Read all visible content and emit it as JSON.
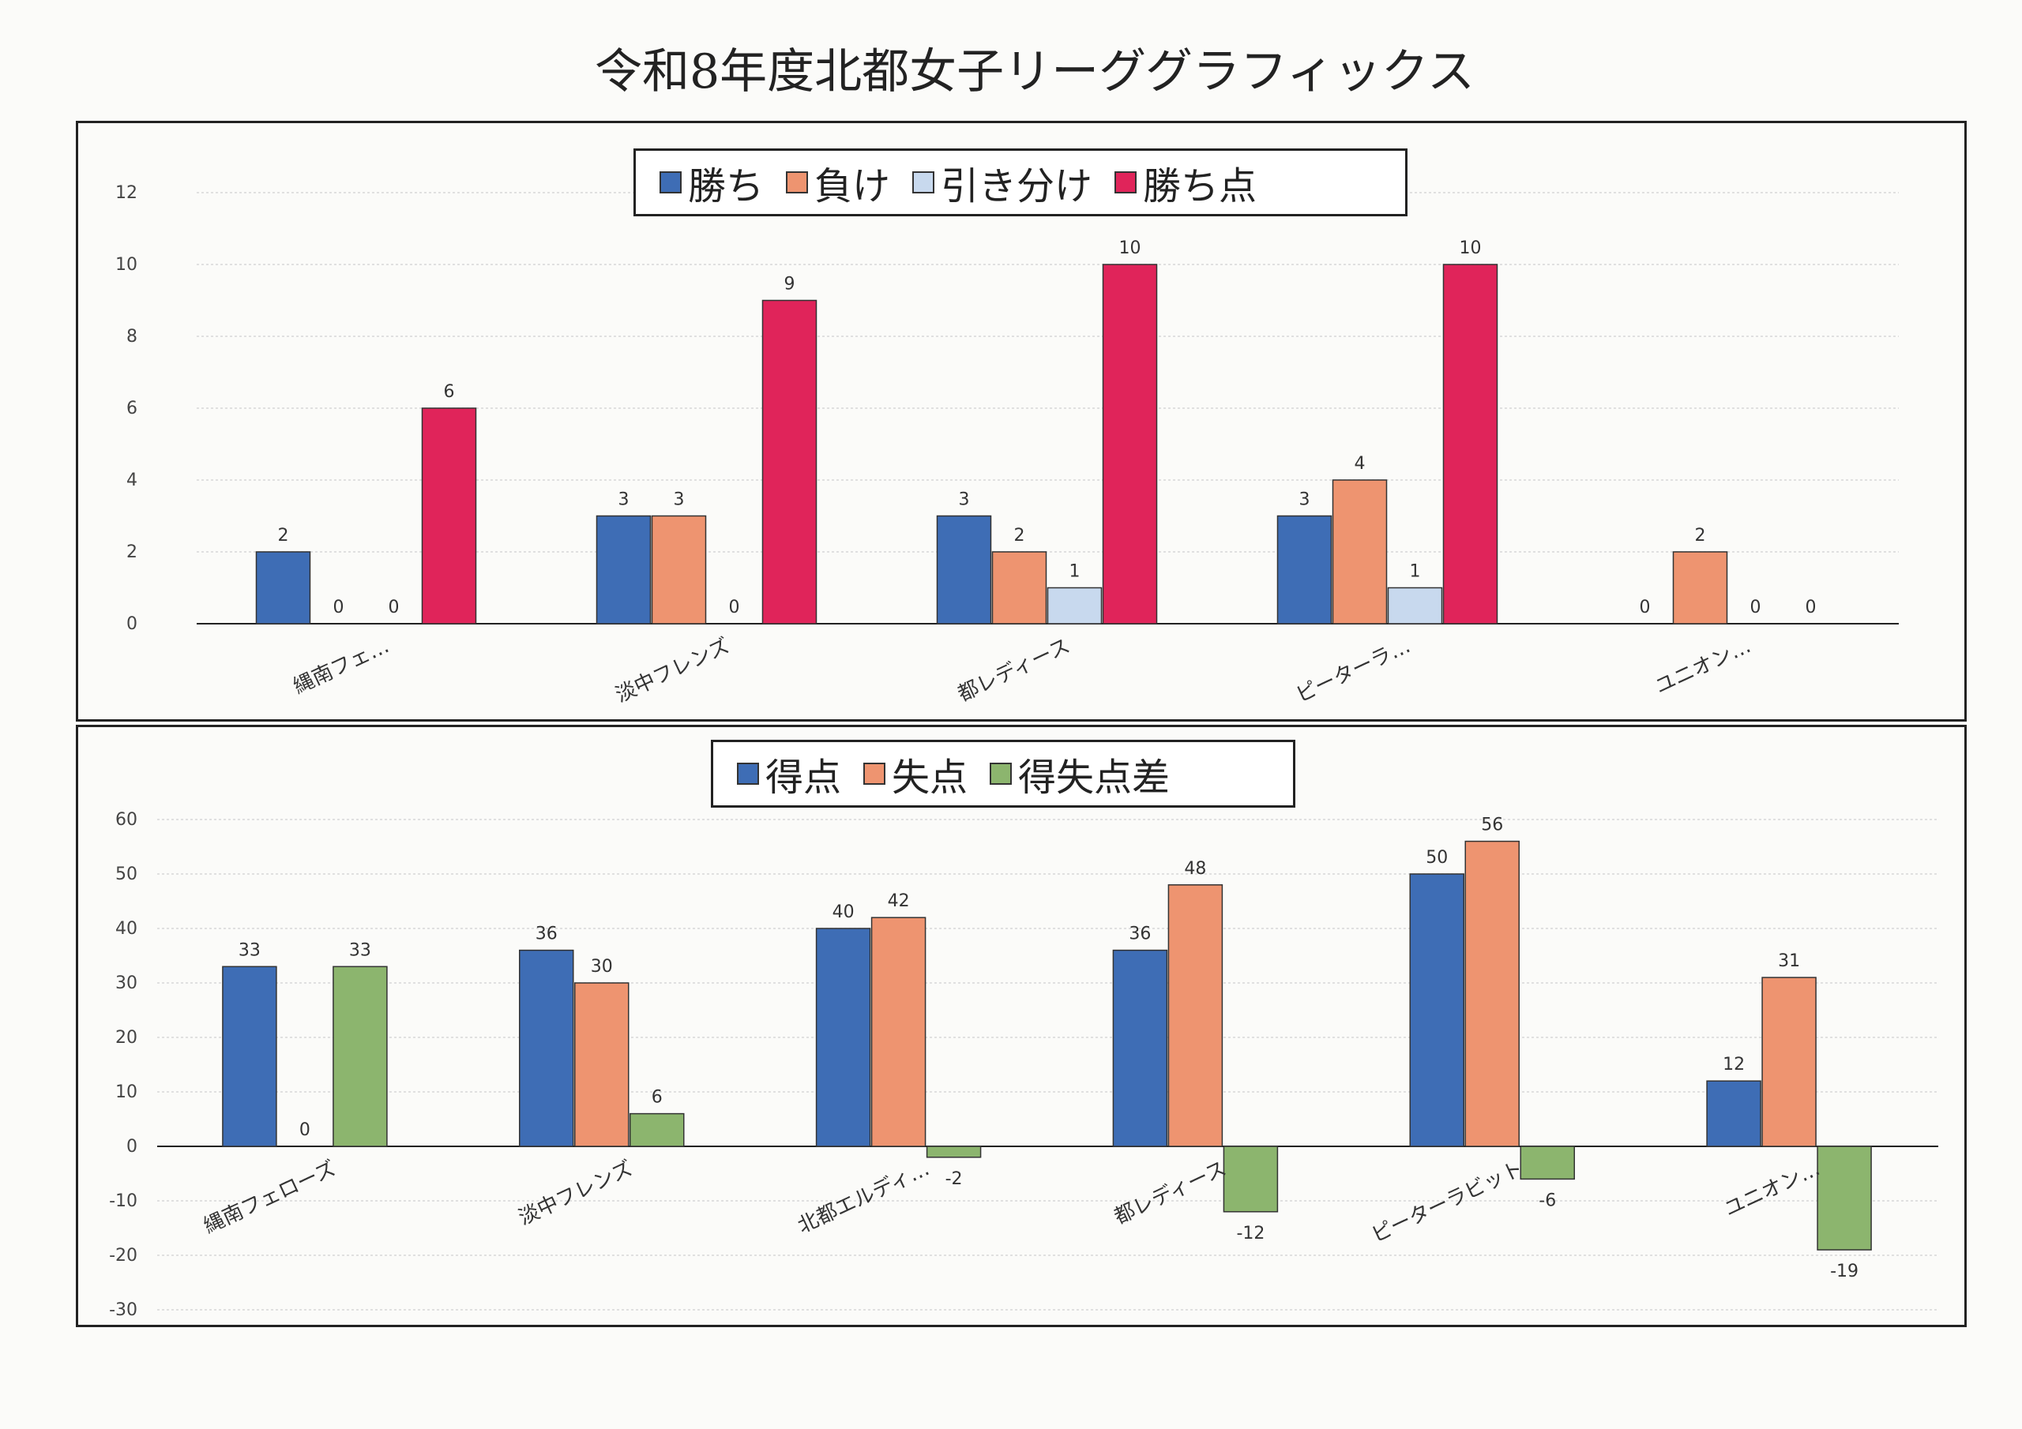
{
  "title": "令和8年度北都女子リーググラフィックス",
  "colors": {
    "win": "#3e6db5",
    "loss": "#ee9470",
    "draw": "#c8d9ee",
    "points": "#e0245a",
    "goals_for": "#3e6db5",
    "goals_against": "#ee9470",
    "goal_diff": "#8cb56e"
  },
  "chart_data": [
    {
      "type": "bar",
      "categories": [
        "縄南フェ…",
        "淡中フレンズ",
        "都レディース",
        "ピーターラ…",
        "ユニオン…"
      ],
      "series": [
        {
          "name": "勝ち",
          "values": [
            2,
            3,
            3,
            3,
            0
          ]
        },
        {
          "name": "負け",
          "values": [
            0,
            3,
            2,
            4,
            2
          ]
        },
        {
          "name": "引き分け",
          "values": [
            0,
            0,
            1,
            1,
            0
          ]
        },
        {
          "name": "勝ち点",
          "values": [
            6,
            9,
            10,
            10,
            0
          ]
        }
      ],
      "yticks": [
        "12",
        "10",
        "8",
        "6",
        "4",
        "2",
        "0"
      ],
      "ylim": [
        0,
        12
      ],
      "legend": "top-center",
      "grid": true
    },
    {
      "type": "bar",
      "categories": [
        "縄南フェローズ",
        "淡中フレンズ",
        "北都エルディ…",
        "都レディース",
        "ピーターラビット",
        "ユニオン…"
      ],
      "series": [
        {
          "name": "得点",
          "values": [
            33,
            36,
            40,
            36,
            50,
            12
          ]
        },
        {
          "name": "失点",
          "values": [
            0,
            30,
            42,
            48,
            56,
            31
          ]
        },
        {
          "name": "得失点差",
          "values": [
            33,
            6,
            -2,
            -12,
            -6,
            -19
          ]
        }
      ],
      "yticks": [
        "60",
        "50",
        "40",
        "30",
        "20",
        "10",
        "0",
        "-10",
        "-20",
        "-30"
      ],
      "ylim": [
        -30,
        60
      ],
      "legend": "top-center",
      "grid": true
    }
  ]
}
